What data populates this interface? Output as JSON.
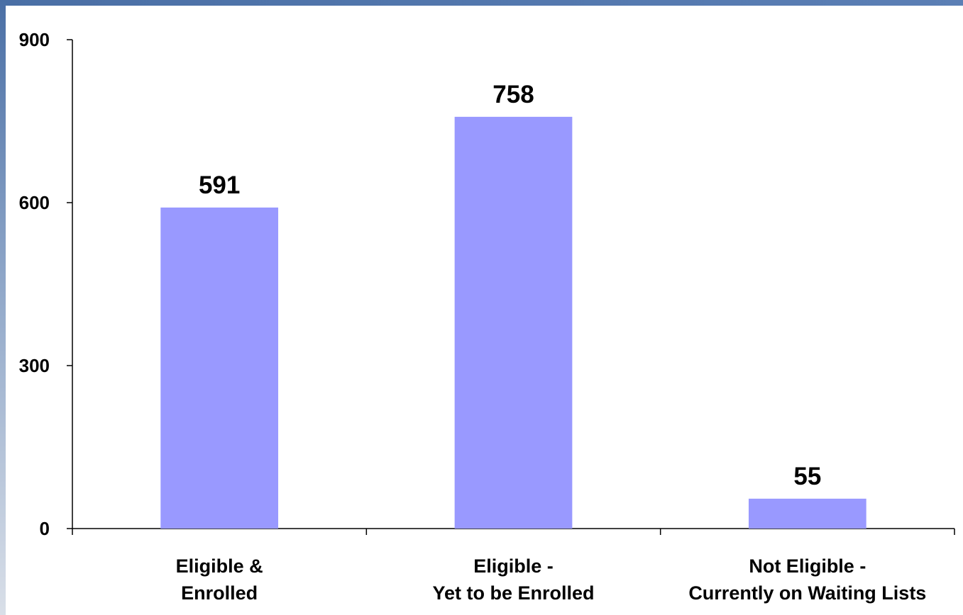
{
  "chart_data": {
    "type": "bar",
    "categories": [
      [
        "Eligible &",
        "Enrolled"
      ],
      [
        "Eligible -",
        "Yet to be Enrolled"
      ],
      [
        "Not Eligible -",
        "Currently on Waiting Lists"
      ]
    ],
    "values": [
      591,
      758,
      55
    ],
    "data_labels": [
      "591",
      "758",
      "55"
    ],
    "y_ticks": [
      "0",
      "300",
      "600",
      "900"
    ],
    "ylim": [
      0,
      900
    ],
    "grid": false,
    "legend": "none",
    "bar_color": "#9999ff"
  },
  "theme": {
    "frame_color": "#4a6fa5",
    "axis_color": "#000000",
    "background": "#ffffff"
  }
}
